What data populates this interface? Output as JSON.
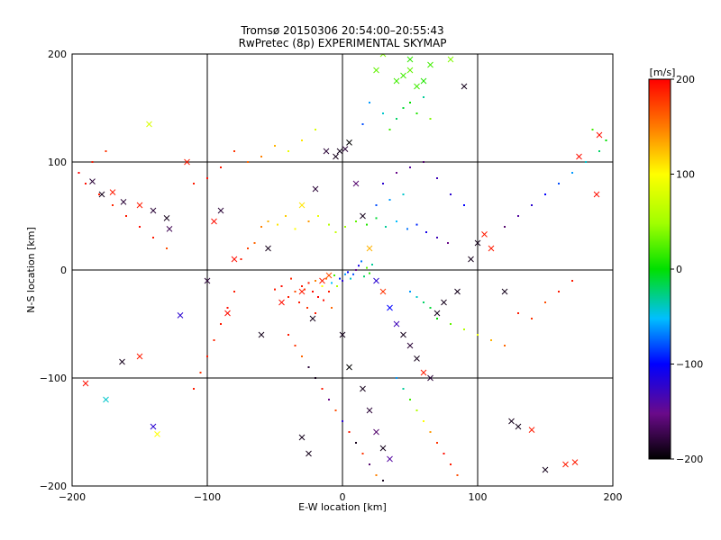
{
  "chart_data": {
    "type": "scatter",
    "title": "Tromsø 20150306 20:54:00–20:55:43",
    "subtitle": "RwPretec (8p) EXPERIMENTAL SKYMAP",
    "xlabel": "E-W location [km]",
    "ylabel": "N-S location [km]",
    "xlim": [
      -200,
      200
    ],
    "ylim": [
      -200,
      200
    ],
    "x_ticks": [
      -200,
      -100,
      0,
      100,
      200
    ],
    "y_ticks": [
      -200,
      -100,
      0,
      100,
      200
    ],
    "grid": true,
    "colorbar": {
      "label": "[m/s]",
      "range": [
        -200,
        200
      ],
      "ticks": [
        200,
        100,
        0,
        -100,
        -200
      ],
      "colormap": "black-purple-blue-cyan-green-yellow-orange-red"
    },
    "marker_legend": "dot = low-intensity echo, x = high-intensity echo (not printed in figure)",
    "series": [
      {
        "marker": "x",
        "points": [
          [
            -185,
            82,
            -180
          ],
          [
            -178,
            70,
            -190
          ],
          [
            -170,
            72,
            190
          ],
          [
            -162,
            63,
            -180
          ],
          [
            -150,
            60,
            190
          ],
          [
            -140,
            55,
            -180
          ],
          [
            -130,
            48,
            -190
          ],
          [
            -128,
            38,
            -170
          ],
          [
            -190,
            -105,
            195
          ],
          [
            -175,
            -120,
            -40
          ],
          [
            -163,
            -85,
            -190
          ],
          [
            -150,
            -80,
            190
          ],
          [
            -140,
            -145,
            -120
          ],
          [
            -137,
            -152,
            100
          ],
          [
            -120,
            -42,
            -120
          ],
          [
            -95,
            45,
            195
          ],
          [
            -90,
            55,
            -180
          ],
          [
            -80,
            10,
            195
          ],
          [
            -60,
            -60,
            -190
          ],
          [
            -55,
            20,
            -190
          ],
          [
            -45,
            -30,
            195
          ],
          [
            -30,
            -20,
            190
          ],
          [
            -22,
            -45,
            -190
          ],
          [
            -15,
            -10,
            190
          ],
          [
            -10,
            -5,
            170
          ],
          [
            -5,
            105,
            -190
          ],
          [
            -2,
            110,
            -190
          ],
          [
            2,
            112,
            -180
          ],
          [
            5,
            118,
            -200
          ],
          [
            -12,
            110,
            -180
          ],
          [
            10,
            80,
            -160
          ],
          [
            15,
            50,
            -190
          ],
          [
            20,
            20,
            130
          ],
          [
            25,
            -10,
            -120
          ],
          [
            30,
            -20,
            180
          ],
          [
            35,
            -35,
            -100
          ],
          [
            40,
            -50,
            -130
          ],
          [
            45,
            -60,
            -190
          ],
          [
            50,
            -70,
            -180
          ],
          [
            55,
            -82,
            -190
          ],
          [
            60,
            -95,
            190
          ],
          [
            65,
            -100,
            -180
          ],
          [
            70,
            -40,
            -190
          ],
          [
            75,
            -30,
            -190
          ],
          [
            85,
            -20,
            -190
          ],
          [
            95,
            10,
            -190
          ],
          [
            100,
            25,
            -190
          ],
          [
            105,
            33,
            190
          ],
          [
            110,
            20,
            190
          ],
          [
            120,
            -20,
            -190
          ],
          [
            125,
            -140,
            -190
          ],
          [
            130,
            -145,
            -190
          ],
          [
            140,
            -148,
            190
          ],
          [
            150,
            -185,
            -190
          ],
          [
            165,
            -180,
            190
          ],
          [
            172,
            -178,
            190
          ],
          [
            188,
            70,
            195
          ],
          [
            190,
            125,
            195
          ],
          [
            175,
            105,
            195
          ],
          [
            40,
            175,
            20
          ],
          [
            45,
            180,
            20
          ],
          [
            50,
            185,
            30
          ],
          [
            55,
            170,
            20
          ],
          [
            60,
            175,
            10
          ],
          [
            65,
            190,
            20
          ],
          [
            30,
            200,
            40
          ],
          [
            25,
            185,
            30
          ],
          [
            50,
            195,
            15
          ],
          [
            80,
            195,
            40
          ],
          [
            90,
            170,
            -190
          ],
          [
            -143,
            135,
            80
          ],
          [
            -115,
            100,
            190
          ],
          [
            -100,
            -10,
            -180
          ],
          [
            -85,
            -40,
            195
          ],
          [
            -30,
            60,
            110
          ],
          [
            -20,
            75,
            -180
          ],
          [
            0,
            -60,
            -190
          ],
          [
            5,
            -90,
            -200
          ],
          [
            15,
            -110,
            -190
          ],
          [
            20,
            -130,
            -180
          ],
          [
            25,
            -150,
            -160
          ],
          [
            30,
            -165,
            -190
          ],
          [
            35,
            -175,
            -140
          ],
          [
            -30,
            -155,
            -190
          ],
          [
            -25,
            -170,
            -190
          ]
        ]
      },
      {
        "marker": "dot",
        "points": [
          [
            -30,
            -15,
            190
          ],
          [
            -28,
            -18,
            180
          ],
          [
            -25,
            -12,
            190
          ],
          [
            -22,
            -20,
            195
          ],
          [
            -20,
            -10,
            150
          ],
          [
            -18,
            -25,
            200
          ],
          [
            -15,
            -15,
            100
          ],
          [
            -12,
            -8,
            160
          ],
          [
            -10,
            -20,
            190
          ],
          [
            -8,
            -12,
            -50
          ],
          [
            -6,
            -5,
            20
          ],
          [
            -4,
            -15,
            60
          ],
          [
            -2,
            -8,
            -90
          ],
          [
            0,
            -10,
            -120
          ],
          [
            2,
            -4,
            -60
          ],
          [
            4,
            -2,
            -100
          ],
          [
            6,
            -8,
            -40
          ],
          [
            8,
            -4,
            -80
          ],
          [
            10,
            0,
            -150
          ],
          [
            12,
            4,
            -110
          ],
          [
            14,
            8,
            -70
          ],
          [
            16,
            -6,
            -20
          ],
          [
            18,
            2,
            30
          ],
          [
            20,
            -3,
            10
          ],
          [
            22,
            5,
            -30
          ],
          [
            -35,
            -20,
            170
          ],
          [
            -40,
            -25,
            190
          ],
          [
            -45,
            -15,
            195
          ],
          [
            -50,
            -18,
            190
          ],
          [
            -38,
            -8,
            185
          ],
          [
            -32,
            -30,
            190
          ],
          [
            -26,
            -35,
            180
          ],
          [
            -20,
            -40,
            190
          ],
          [
            -14,
            -28,
            195
          ],
          [
            -8,
            -35,
            160
          ],
          [
            -60,
            40,
            150
          ],
          [
            -55,
            45,
            130
          ],
          [
            -48,
            42,
            110
          ],
          [
            -42,
            50,
            120
          ],
          [
            -35,
            38,
            100
          ],
          [
            -25,
            45,
            140
          ],
          [
            -18,
            50,
            90
          ],
          [
            -10,
            42,
            60
          ],
          [
            -5,
            35,
            70
          ],
          [
            2,
            40,
            50
          ],
          [
            10,
            45,
            30
          ],
          [
            18,
            42,
            10
          ],
          [
            25,
            48,
            -10
          ],
          [
            32,
            40,
            -30
          ],
          [
            40,
            45,
            -50
          ],
          [
            48,
            38,
            -70
          ],
          [
            55,
            42,
            -90
          ],
          [
            62,
            35,
            -110
          ],
          [
            70,
            30,
            -130
          ],
          [
            78,
            25,
            -150
          ],
          [
            -75,
            10,
            190
          ],
          [
            -70,
            20,
            175
          ],
          [
            -65,
            25,
            160
          ],
          [
            -80,
            -20,
            190
          ],
          [
            -85,
            -35,
            195
          ],
          [
            -90,
            -50,
            190
          ],
          [
            -95,
            -65,
            185
          ],
          [
            -100,
            -80,
            190
          ],
          [
            -105,
            -95,
            180
          ],
          [
            -110,
            -110,
            190
          ],
          [
            30,
            80,
            -120
          ],
          [
            40,
            90,
            -150
          ],
          [
            50,
            95,
            -140
          ],
          [
            60,
            100,
            -160
          ],
          [
            70,
            85,
            -130
          ],
          [
            80,
            70,
            -120
          ],
          [
            90,
            60,
            -100
          ],
          [
            25,
            60,
            -80
          ],
          [
            35,
            65,
            -60
          ],
          [
            45,
            70,
            -40
          ],
          [
            40,
            140,
            -20
          ],
          [
            45,
            150,
            -10
          ],
          [
            50,
            155,
            0
          ],
          [
            55,
            145,
            10
          ],
          [
            60,
            160,
            -30
          ],
          [
            35,
            130,
            20
          ],
          [
            30,
            145,
            -40
          ],
          [
            65,
            140,
            40
          ],
          [
            20,
            155,
            -60
          ],
          [
            15,
            135,
            -80
          ],
          [
            -20,
            130,
            80
          ],
          [
            -30,
            120,
            110
          ],
          [
            -40,
            110,
            90
          ],
          [
            -50,
            115,
            130
          ],
          [
            -60,
            105,
            150
          ],
          [
            -70,
            100,
            160
          ],
          [
            -80,
            110,
            180
          ],
          [
            -90,
            95,
            190
          ],
          [
            -100,
            85,
            195
          ],
          [
            -110,
            80,
            190
          ],
          [
            50,
            -20,
            -60
          ],
          [
            55,
            -25,
            -40
          ],
          [
            60,
            -30,
            -20
          ],
          [
            65,
            -35,
            -10
          ],
          [
            70,
            -45,
            0
          ],
          [
            80,
            -50,
            30
          ],
          [
            90,
            -55,
            60
          ],
          [
            100,
            -60,
            90
          ],
          [
            110,
            -65,
            130
          ],
          [
            120,
            -70,
            160
          ],
          [
            130,
            -40,
            190
          ],
          [
            140,
            -45,
            180
          ],
          [
            150,
            -30,
            170
          ],
          [
            160,
            -20,
            190
          ],
          [
            170,
            -10,
            190
          ],
          [
            -40,
            -60,
            190
          ],
          [
            -35,
            -70,
            180
          ],
          [
            -30,
            -80,
            160
          ],
          [
            -25,
            -90,
            -180
          ],
          [
            -20,
            -100,
            -190
          ],
          [
            -15,
            -110,
            190
          ],
          [
            -10,
            -120,
            -150
          ],
          [
            -5,
            -130,
            170
          ],
          [
            0,
            -140,
            -120
          ],
          [
            5,
            -150,
            190
          ],
          [
            10,
            -160,
            -190
          ],
          [
            15,
            -170,
            180
          ],
          [
            20,
            -180,
            -160
          ],
          [
            25,
            -190,
            150
          ],
          [
            30,
            -195,
            -190
          ],
          [
            40,
            -100,
            -60
          ],
          [
            45,
            -110,
            -30
          ],
          [
            50,
            -120,
            20
          ],
          [
            55,
            -130,
            60
          ],
          [
            60,
            -140,
            100
          ],
          [
            65,
            -150,
            140
          ],
          [
            70,
            -160,
            180
          ],
          [
            75,
            -170,
            195
          ],
          [
            80,
            -180,
            190
          ],
          [
            85,
            -190,
            170
          ],
          [
            -130,
            20,
            170
          ],
          [
            -140,
            30,
            190
          ],
          [
            -150,
            40,
            195
          ],
          [
            -160,
            50,
            190
          ],
          [
            -170,
            60,
            185
          ],
          [
            -180,
            70,
            190
          ],
          [
            -190,
            80,
            195
          ],
          [
            -195,
            90,
            200
          ],
          [
            -185,
            100,
            190
          ],
          [
            -175,
            110,
            180
          ],
          [
            120,
            40,
            -160
          ],
          [
            130,
            50,
            -140
          ],
          [
            140,
            60,
            -120
          ],
          [
            150,
            70,
            -100
          ],
          [
            160,
            80,
            -80
          ],
          [
            170,
            90,
            -60
          ],
          [
            180,
            100,
            -40
          ],
          [
            190,
            110,
            -20
          ],
          [
            195,
            120,
            0
          ],
          [
            185,
            130,
            20
          ]
        ]
      }
    ]
  }
}
